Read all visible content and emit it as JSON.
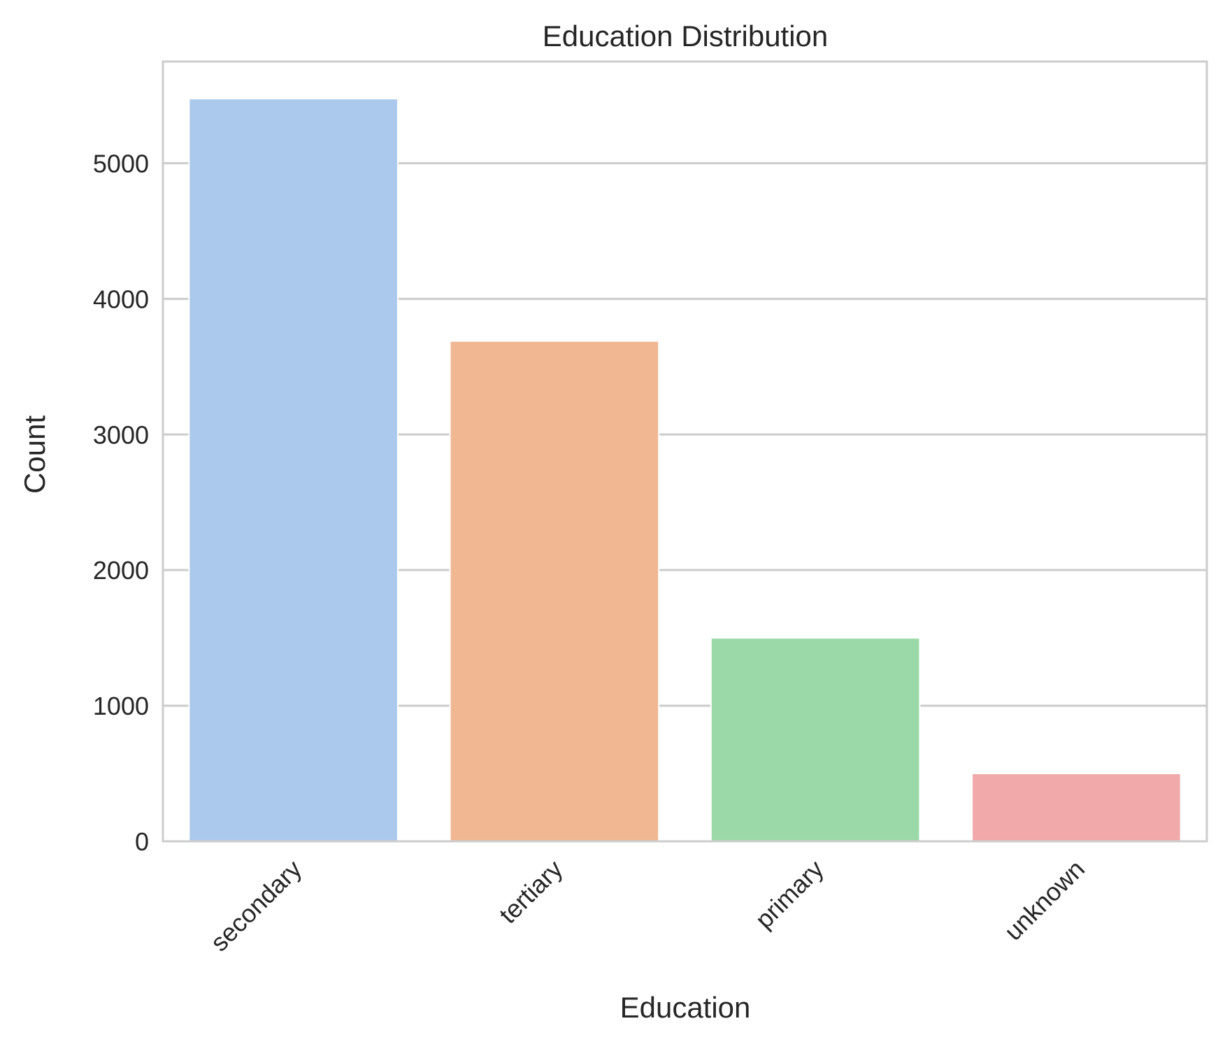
{
  "chart_data": {
    "type": "bar",
    "title": "Education Distribution",
    "xlabel": "Education",
    "ylabel": "Count",
    "categories": [
      "secondary",
      "tertiary",
      "primary",
      "unknown"
    ],
    "values": [
      5476,
      3689,
      1500,
      500
    ],
    "colors": [
      "#abc9ec",
      "#f0b792",
      "#9bdaa8",
      "#f2a9a9"
    ],
    "ylim": [
      0,
      5750
    ],
    "yticks": [
      0,
      1000,
      2000,
      3000,
      4000,
      5000
    ],
    "grid": "horizontal",
    "grid_color": "#cccccc",
    "spine_color": "#cccccc",
    "xtick_rotation": 45
  }
}
